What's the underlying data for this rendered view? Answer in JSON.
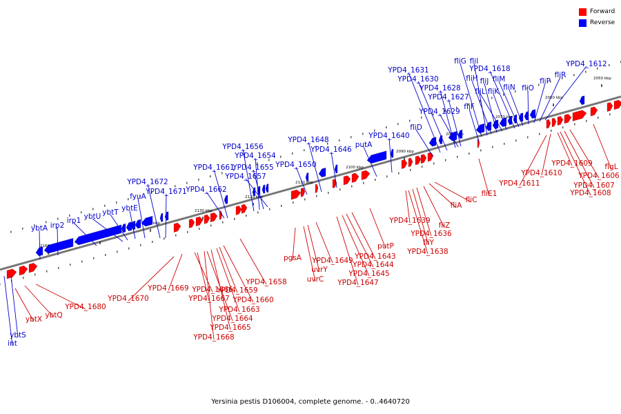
{
  "caption": "Yersinia pestis D106004, complete genome. - 0..4640720",
  "legend": {
    "forward": {
      "label": "Forward",
      "color": "#ff0000"
    },
    "reverse": {
      "label": "Reverse",
      "color": "#0000ff"
    }
  },
  "colors": {
    "forward_label": "#cc0000",
    "reverse_label": "#0000cc",
    "backbone": "#777777"
  },
  "scale_labels": [
    "2050 kbp",
    "2060 kbp",
    "2070 kbp",
    "2080 kbp",
    "2090 kbp",
    "2100 kbp",
    "2110 kbp",
    "2120 kbp",
    "2130 kbp",
    "2140 kbp",
    "2150 kbp",
    "2160 kbp"
  ],
  "reverse_genes": [
    "int",
    "ybtS",
    "ybtA",
    "irp2",
    "irp1",
    "ybtU",
    "ybtT",
    "ybtE",
    "fyuA",
    "YPD4_1672",
    "YPD4_1671",
    "YPD4_1662",
    "YPD4_1661",
    "YPD4_1656",
    "YPD4_1654",
    "YPD4_1655",
    "YPD4_1657",
    "YPD4_1650",
    "YPD4_1648",
    "YPD4_1646",
    "putA",
    "YPD4_1640",
    "fliD",
    "YPD4_1631",
    "YPD4_1630",
    "YPD4_1628",
    "YPD4_1627",
    "YPD4_1629",
    "fliF",
    "fliG",
    "fliI",
    "fliH",
    "fliJ",
    "fliL",
    "fliK",
    "YPD4_1618",
    "fliM",
    "fliN",
    "fliO",
    "fliP",
    "fliR",
    "YPD4_1612"
  ],
  "forward_genes": [
    "ybtX",
    "ybtQ",
    "YPD4_1680",
    "YPD4_1670",
    "YPD4_1669",
    "YPD4_1666",
    "YPD4_1667",
    "YPD4_1664",
    "YPD4_1665",
    "YPD4_1668",
    "YPD4_1663",
    "YPD4_1659",
    "YPD4_1660",
    "YPD4_1658",
    "pgsA",
    "uvrY",
    "uvrC",
    "YPD4_1649",
    "YPD4_1643",
    "YPD4_1644",
    "YPD4_1645",
    "YPD4_1647",
    "putP",
    "YPD4_1639",
    "fliZ",
    "YPD4_1636",
    "fliY",
    "YPD4_1638",
    "fliA",
    "fliC",
    "fliE1",
    "YPD4_1611",
    "YPD4_1610",
    "YPD4_1609",
    "YPD4_1606",
    "YPD4_1607",
    "YPD4_1608",
    "flgL"
  ]
}
